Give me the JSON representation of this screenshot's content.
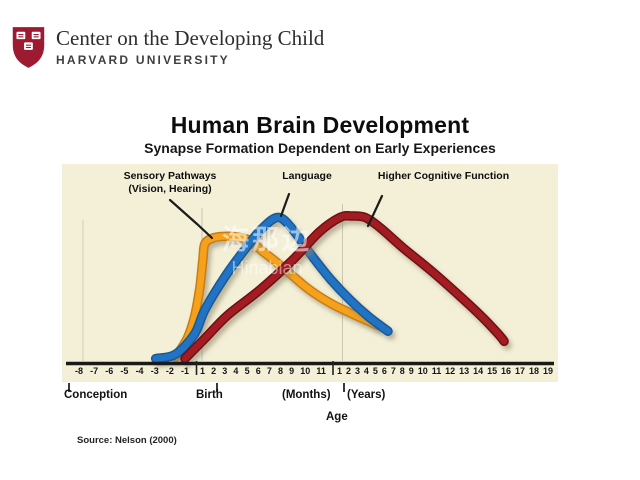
{
  "header": {
    "org_name": "Center on the Developing Child",
    "university": "HARVARD UNIVERSITY"
  },
  "title": "Human Brain Development",
  "subtitle": "Synapse Formation Dependent on Early Experiences",
  "curve_labels": {
    "sensory_line1": "Sensory Pathways",
    "sensory_line2": "(Vision, Hearing)",
    "language": "Language",
    "higher": "Higher Cognitive Function"
  },
  "watermark": {
    "line1": "海那边",
    "line2": "Hinabian"
  },
  "axis_words": {
    "conception": "Conception",
    "birth": "Birth",
    "months": "(Months)",
    "years": "(Years)",
    "age": "Age"
  },
  "source": "Source: Nelson (2000)",
  "colors": {
    "plot_background": "#f4f0d7",
    "axis_line": "#1a1a1a",
    "gridline": "#cbc7b2",
    "harvard_crimson": "#9c1b31",
    "sensory_orange": "#f5a11c",
    "language_blue": "#2273c4",
    "cognitive_red": "#a21d22"
  },
  "chart_data": {
    "type": "line",
    "title": "Human Brain Development",
    "subtitle": "Synapse Formation Dependent on Early Experiences",
    "xlabel": "Age",
    "ylabel": "Synapse formation (relative, axis unlabeled)",
    "x_scale_note": "Piecewise axis: months -8..-1 before birth, months 1..11 after birth, then years 1..19. Series x values are months relative to birth (negative = prenatal, years expressed as months).",
    "ylim": [
      0,
      100
    ],
    "grid": "two faint vertical lines at birth and at the months/years boundary",
    "legend_position": "labels with pointer lines above each curve",
    "axis": {
      "prenatal_ticks": [
        "-8",
        "-7",
        "-6",
        "-5",
        "-4",
        "-3",
        "-2",
        "-1"
      ],
      "month_ticks": [
        "1",
        "2",
        "3",
        "4",
        "5",
        "6",
        "7",
        "8",
        "9",
        "10",
        "11"
      ],
      "year_ticks": [
        "1",
        "2",
        "3",
        "4",
        "5",
        "6",
        "7",
        "8",
        "9",
        "10",
        "11",
        "12",
        "13",
        "14",
        "15",
        "16",
        "17",
        "18",
        "19"
      ]
    },
    "series": [
      {
        "id": "sensory",
        "name": "Sensory Pathways (Vision, Hearing)",
        "color": "#f5a11c",
        "edge": "#c97d12",
        "points": [
          [
            -1.6,
            2
          ],
          [
            -0.7,
            15
          ],
          [
            0,
            30
          ],
          [
            0.5,
            50
          ],
          [
            0.8,
            70
          ],
          [
            1,
            81
          ],
          [
            1.8,
            85
          ],
          [
            3,
            86
          ],
          [
            4,
            85
          ],
          [
            4.8,
            83
          ],
          [
            5.8,
            76
          ],
          [
            6.9,
            69
          ],
          [
            8.2,
            60
          ],
          [
            9.5,
            51
          ],
          [
            10.7,
            44
          ],
          [
            11.6,
            38
          ],
          [
            22.8,
            32
          ],
          [
            36,
            28
          ],
          [
            49,
            24
          ]
        ]
      },
      {
        "id": "language",
        "name": "Language",
        "color": "#2273c4",
        "edge": "#155a96",
        "points": [
          [
            -3,
            1
          ],
          [
            -1.6,
            4
          ],
          [
            0,
            18
          ],
          [
            1,
            35
          ],
          [
            2.7,
            58
          ],
          [
            4.4,
            77
          ],
          [
            5.8,
            91
          ],
          [
            7.2,
            99
          ],
          [
            8.4,
            91
          ],
          [
            9.9,
            74
          ],
          [
            11.4,
            56
          ],
          [
            20,
            42
          ],
          [
            40,
            30
          ],
          [
            60,
            20
          ]
        ]
      },
      {
        "id": "higher_cognitive",
        "name": "Higher Cognitive Function",
        "color": "#a21d22",
        "edge": "#701114",
        "points": [
          [
            -0.9,
            1
          ],
          [
            1,
            15
          ],
          [
            2.9,
            31
          ],
          [
            5.7,
            49
          ],
          [
            8.5,
            70
          ],
          [
            10.7,
            89
          ],
          [
            11.9,
            99
          ],
          [
            22.4,
            100
          ],
          [
            36,
            99
          ],
          [
            51.6,
            92
          ],
          [
            75.6,
            78
          ],
          [
            106.8,
            61
          ],
          [
            135.6,
            44
          ],
          [
            159.6,
            29
          ],
          [
            176.4,
            17
          ],
          [
            181.2,
            13
          ]
        ]
      }
    ]
  }
}
